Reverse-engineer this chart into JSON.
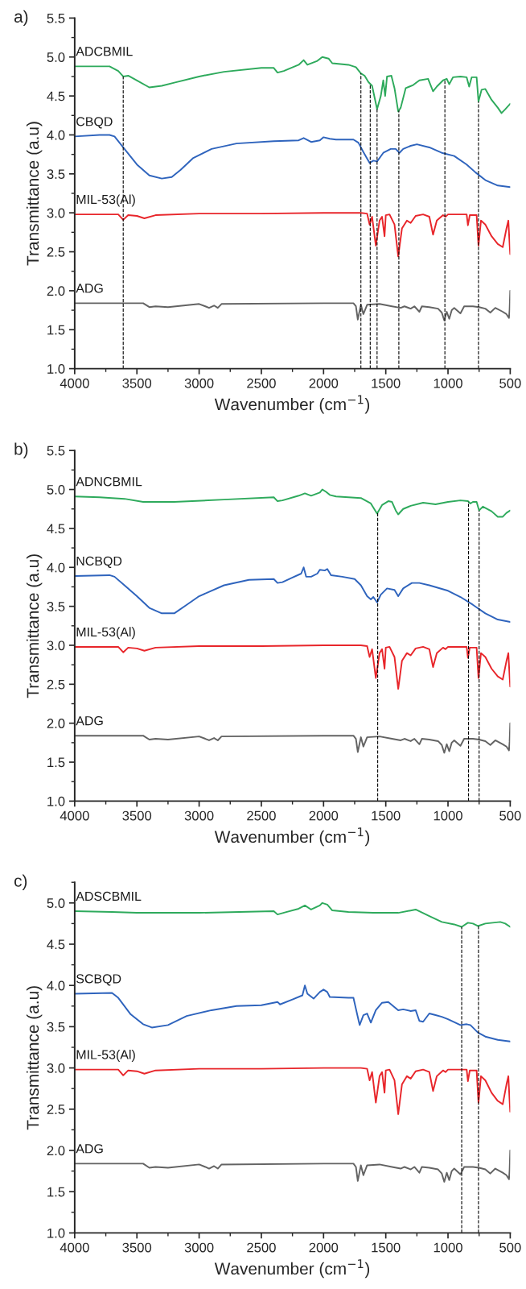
{
  "chart_data": [
    {
      "type": "line",
      "xlabel": "Wavenumber (cm$^{−1}$)",
      "ylabel": "Transmittance (a.u)",
      "annotations": [
        "a)"
      ],
      "xlim": [
        4000,
        500
      ],
      "xticks": [
        4000,
        3500,
        3000,
        2500,
        2000,
        1500,
        1000,
        500
      ],
      "ylim": [
        1.0,
        5.5
      ],
      "yticks": [
        {
          "value": 1,
          "label": "1.0"
        },
        1.5,
        {
          "value": 2,
          "label": "2.0"
        },
        2.5,
        {
          "value": 3,
          "label": "3.0"
        },
        3.5,
        {
          "value": 4,
          "label": "4.0"
        },
        4.5,
        {
          "value": 5,
          "label": "5.0"
        },
        5.5
      ],
      "grid": false,
      "legend": false,
      "line_style": "solid",
      "marker": "none",
      "ref_lines": [
        {
          "axis": "x",
          "value": 3610,
          "line_style": "dashed",
          "color": "#000000"
        },
        {
          "axis": "x",
          "value": 1700,
          "line_style": "dashed",
          "color": "#000000"
        },
        {
          "axis": "x",
          "value": 1625,
          "line_style": "dashed",
          "color": "#000000"
        },
        {
          "axis": "x",
          "value": 1570,
          "line_style": "dashed",
          "color": "#000000"
        },
        {
          "axis": "x",
          "value": 1395,
          "line_style": "dashed",
          "color": "#000000"
        },
        {
          "axis": "x",
          "value": 1025,
          "line_style": "dashed",
          "color": "#000000"
        },
        {
          "axis": "x",
          "value": 755,
          "line_style": "dashed",
          "color": "#000000"
        }
      ],
      "series": [
        {
          "name": "ADCBMIL",
          "color": "#2eaa5c",
          "x": [
            4000,
            3850,
            3720,
            3650,
            3610,
            3570,
            3500,
            3400,
            3300,
            3200,
            3000,
            2800,
            2500,
            2400,
            2370,
            2320,
            2200,
            2160,
            2130,
            2050,
            2010,
            1960,
            1930,
            1800,
            1740,
            1700,
            1670,
            1640,
            1610,
            1570,
            1540,
            1520,
            1505,
            1490,
            1455,
            1430,
            1400,
            1380,
            1340,
            1310,
            1280,
            1230,
            1160,
            1120,
            1090,
            1040,
            1010,
            990,
            960,
            900,
            850,
            830,
            810,
            770,
            755,
            730,
            700,
            650,
            600,
            570,
            540,
            500
          ],
          "values": [
            4.88,
            4.88,
            4.88,
            4.82,
            4.75,
            4.76,
            4.7,
            4.61,
            4.63,
            4.67,
            4.75,
            4.81,
            4.86,
            4.86,
            4.8,
            4.82,
            4.9,
            4.96,
            4.9,
            4.95,
            5.0,
            4.98,
            4.92,
            4.9,
            4.87,
            4.79,
            4.76,
            4.68,
            4.63,
            4.33,
            4.5,
            4.7,
            4.5,
            4.75,
            4.76,
            4.6,
            4.3,
            4.35,
            4.6,
            4.62,
            4.64,
            4.7,
            4.72,
            4.56,
            4.62,
            4.7,
            4.72,
            4.65,
            4.74,
            4.75,
            4.74,
            4.62,
            4.74,
            4.74,
            4.43,
            4.58,
            4.59,
            4.45,
            4.35,
            4.28,
            4.33,
            4.4
          ]
        },
        {
          "name": "CBQD",
          "color": "#2f64bd",
          "x": [
            4000,
            3800,
            3720,
            3680,
            3600,
            3500,
            3400,
            3300,
            3220,
            3150,
            3050,
            2900,
            2700,
            2400,
            2200,
            2160,
            2100,
            2030,
            2000,
            1950,
            1900,
            1760,
            1720,
            1680,
            1630,
            1600,
            1570,
            1520,
            1460,
            1420,
            1390,
            1360,
            1300,
            1250,
            1150,
            1050,
            950,
            850,
            780,
            700,
            600,
            500
          ],
          "values": [
            3.98,
            4.0,
            4.0,
            3.98,
            3.82,
            3.62,
            3.48,
            3.44,
            3.46,
            3.55,
            3.7,
            3.82,
            3.89,
            3.92,
            3.93,
            3.96,
            3.91,
            3.93,
            3.97,
            3.95,
            3.94,
            3.94,
            3.9,
            3.78,
            3.64,
            3.67,
            3.66,
            3.77,
            3.82,
            3.82,
            3.77,
            3.82,
            3.86,
            3.88,
            3.84,
            3.77,
            3.73,
            3.62,
            3.52,
            3.42,
            3.35,
            3.33
          ]
        },
        {
          "name": "MIL-53(Al)",
          "color": "#e8262b",
          "x": [
            4000,
            3650,
            3610,
            3570,
            3500,
            3440,
            3350,
            3000,
            2500,
            2000,
            1700,
            1650,
            1630,
            1610,
            1580,
            1550,
            1530,
            1510,
            1500,
            1470,
            1430,
            1400,
            1370,
            1330,
            1300,
            1260,
            1200,
            1150,
            1120,
            1090,
            1040,
            1020,
            1000,
            850,
            840,
            825,
            770,
            755,
            735,
            700,
            650,
            600,
            560,
            530,
            515,
            505,
            500
          ],
          "values": [
            2.98,
            2.98,
            2.91,
            2.97,
            2.96,
            2.93,
            2.97,
            2.99,
            2.99,
            3.0,
            3.0,
            2.99,
            2.85,
            2.95,
            2.58,
            2.9,
            2.95,
            2.7,
            2.97,
            2.98,
            2.85,
            2.44,
            2.8,
            2.9,
            2.87,
            2.96,
            2.98,
            2.95,
            2.72,
            2.9,
            2.97,
            2.95,
            2.98,
            2.98,
            2.84,
            2.97,
            2.97,
            2.58,
            2.9,
            2.85,
            2.7,
            2.6,
            2.56,
            2.8,
            2.9,
            2.6,
            2.47
          ]
        },
        {
          "name": "ADG",
          "color": "#636363",
          "x": [
            4000,
            3450,
            3400,
            3350,
            3250,
            3000,
            2950,
            2920,
            2880,
            2850,
            2820,
            2000,
            1760,
            1740,
            1725,
            1700,
            1680,
            1650,
            1550,
            1450,
            1380,
            1350,
            1300,
            1270,
            1230,
            1210,
            1150,
            1080,
            1050,
            1030,
            1010,
            990,
            970,
            950,
            900,
            870,
            800,
            750,
            700,
            660,
            620,
            560,
            530,
            510,
            505,
            500
          ],
          "values": [
            1.84,
            1.84,
            1.79,
            1.8,
            1.79,
            1.83,
            1.8,
            1.78,
            1.81,
            1.78,
            1.83,
            1.84,
            1.84,
            1.8,
            1.63,
            1.82,
            1.7,
            1.82,
            1.83,
            1.8,
            1.78,
            1.8,
            1.77,
            1.8,
            1.73,
            1.8,
            1.79,
            1.77,
            1.72,
            1.62,
            1.73,
            1.64,
            1.75,
            1.78,
            1.71,
            1.8,
            1.8,
            1.79,
            1.77,
            1.72,
            1.78,
            1.73,
            1.7,
            1.65,
            1.76,
            2.0
          ]
        }
      ]
    },
    {
      "type": "line",
      "xlabel": "Wavenumber (cm$^{−1}$)",
      "ylabel": "Transmittance (a.u)",
      "annotations": [
        "b)"
      ],
      "xlim": [
        4000,
        500
      ],
      "xticks": [
        4000,
        3500,
        3000,
        2500,
        2000,
        1500,
        1000,
        500
      ],
      "ylim": [
        1.0,
        5.5
      ],
      "yticks": [
        {
          "value": 1,
          "label": "1.0"
        },
        1.5,
        {
          "value": 2,
          "label": "2.0"
        },
        2.5,
        {
          "value": 3,
          "label": "3.0"
        },
        3.5,
        {
          "value": 4,
          "label": "4.0"
        },
        4.5,
        {
          "value": 5,
          "label": "5.0"
        },
        5.5
      ],
      "grid": false,
      "legend": false,
      "line_style": "solid",
      "marker": "none",
      "ref_lines": [
        {
          "axis": "x",
          "value": 1565,
          "line_style": "dashed",
          "color": "#000000"
        },
        {
          "axis": "x",
          "value": 835,
          "line_style": "dashed",
          "color": "#000000"
        },
        {
          "axis": "x",
          "value": 750,
          "line_style": "dashed",
          "color": "#000000"
        }
      ],
      "series": [
        {
          "name": "ADNCBMIL",
          "color": "#2eaa5c",
          "x": [
            4000,
            3800,
            3600,
            3450,
            3200,
            2800,
            2400,
            2370,
            2330,
            2200,
            2150,
            2100,
            2030,
            2010,
            1980,
            1950,
            1900,
            1700,
            1620,
            1570,
            1530,
            1480,
            1450,
            1420,
            1400,
            1360,
            1300,
            1200,
            1100,
            1000,
            900,
            840,
            820,
            800,
            770,
            750,
            720,
            650,
            600,
            560,
            530,
            500
          ],
          "values": [
            4.91,
            4.9,
            4.88,
            4.84,
            4.84,
            4.87,
            4.9,
            4.85,
            4.86,
            4.92,
            4.95,
            4.92,
            4.96,
            5.0,
            4.97,
            4.93,
            4.91,
            4.89,
            4.82,
            4.69,
            4.8,
            4.85,
            4.84,
            4.73,
            4.68,
            4.75,
            4.79,
            4.83,
            4.81,
            4.84,
            4.86,
            4.85,
            4.82,
            4.84,
            4.84,
            4.73,
            4.78,
            4.72,
            4.65,
            4.65,
            4.7,
            4.73
          ]
        },
        {
          "name": "NCBQD",
          "color": "#2f64bd",
          "x": [
            4000,
            3720,
            3680,
            3600,
            3500,
            3400,
            3300,
            3200,
            3100,
            3000,
            2800,
            2600,
            2400,
            2370,
            2330,
            2250,
            2180,
            2160,
            2140,
            2100,
            2050,
            2030,
            1990,
            1970,
            1940,
            1850,
            1750,
            1700,
            1650,
            1620,
            1600,
            1570,
            1540,
            1490,
            1430,
            1400,
            1360,
            1290,
            1230,
            1150,
            1000,
            900,
            800,
            700,
            600,
            500
          ],
          "values": [
            3.89,
            3.9,
            3.88,
            3.77,
            3.63,
            3.48,
            3.41,
            3.41,
            3.52,
            3.63,
            3.77,
            3.84,
            3.85,
            3.8,
            3.81,
            3.87,
            3.92,
            4.0,
            3.88,
            3.88,
            3.92,
            3.97,
            3.96,
            3.98,
            3.9,
            3.88,
            3.85,
            3.77,
            3.63,
            3.59,
            3.62,
            3.55,
            3.65,
            3.73,
            3.71,
            3.63,
            3.73,
            3.8,
            3.8,
            3.77,
            3.7,
            3.62,
            3.52,
            3.41,
            3.33,
            3.3
          ]
        },
        {
          "name": "MIL-53(Al)",
          "color": "#e8262b",
          "x": [
            4000,
            3650,
            3610,
            3570,
            3500,
            3440,
            3350,
            3000,
            2500,
            2000,
            1700,
            1650,
            1630,
            1610,
            1580,
            1550,
            1530,
            1510,
            1500,
            1470,
            1430,
            1400,
            1370,
            1330,
            1300,
            1260,
            1200,
            1150,
            1120,
            1090,
            1040,
            1020,
            1000,
            850,
            840,
            825,
            770,
            755,
            735,
            700,
            650,
            600,
            560,
            530,
            515,
            505,
            500
          ],
          "values": [
            2.98,
            2.98,
            2.91,
            2.97,
            2.96,
            2.93,
            2.97,
            2.99,
            2.99,
            3.0,
            3.0,
            2.99,
            2.85,
            2.95,
            2.58,
            2.9,
            2.95,
            2.7,
            2.97,
            2.98,
            2.85,
            2.44,
            2.8,
            2.9,
            2.87,
            2.96,
            2.98,
            2.95,
            2.72,
            2.9,
            2.97,
            2.95,
            2.98,
            2.98,
            2.84,
            2.97,
            2.97,
            2.58,
            2.9,
            2.85,
            2.7,
            2.6,
            2.56,
            2.8,
            2.9,
            2.6,
            2.47
          ]
        },
        {
          "name": "ADG",
          "color": "#636363",
          "x": [
            4000,
            3450,
            3400,
            3350,
            3250,
            3000,
            2950,
            2920,
            2880,
            2850,
            2820,
            2000,
            1760,
            1740,
            1725,
            1700,
            1680,
            1650,
            1550,
            1450,
            1380,
            1350,
            1300,
            1270,
            1230,
            1210,
            1150,
            1080,
            1050,
            1030,
            1010,
            990,
            970,
            950,
            900,
            870,
            800,
            750,
            700,
            660,
            620,
            560,
            530,
            510,
            505,
            500
          ],
          "values": [
            1.84,
            1.84,
            1.79,
            1.8,
            1.79,
            1.83,
            1.8,
            1.78,
            1.81,
            1.78,
            1.83,
            1.84,
            1.84,
            1.8,
            1.63,
            1.82,
            1.7,
            1.82,
            1.83,
            1.8,
            1.78,
            1.8,
            1.77,
            1.8,
            1.73,
            1.8,
            1.79,
            1.77,
            1.72,
            1.62,
            1.73,
            1.64,
            1.75,
            1.78,
            1.71,
            1.8,
            1.8,
            1.79,
            1.77,
            1.72,
            1.78,
            1.73,
            1.7,
            1.65,
            1.76,
            2.0
          ]
        }
      ]
    },
    {
      "type": "line",
      "xlabel": "Wavenumber (cm$^{−1}$)",
      "ylabel": "Transmittance (a.u)",
      "annotations": [
        "c)"
      ],
      "xlim": [
        4000,
        500
      ],
      "xticks": [
        4000,
        3500,
        3000,
        2500,
        2000,
        1500,
        1000,
        500
      ],
      "ylim": [
        1.0,
        5.25
      ],
      "yticks": [
        {
          "value": 1,
          "label": "1.0"
        },
        1.5,
        {
          "value": 2,
          "label": "2.0"
        },
        2.5,
        {
          "value": 3,
          "label": "3.0"
        },
        3.5,
        {
          "value": 4,
          "label": "4.0"
        },
        4.5,
        {
          "value": 5,
          "label": "5.0"
        }
      ],
      "grid": false,
      "legend": false,
      "line_style": "solid",
      "marker": "none",
      "ref_lines": [
        {
          "axis": "x",
          "value": 890,
          "line_style": "dashed",
          "color": "#000000"
        },
        {
          "axis": "x",
          "value": 755,
          "line_style": "dashed",
          "color": "#000000"
        }
      ],
      "series": [
        {
          "name": "ADSCBMIL",
          "color": "#2eaa5c",
          "x": [
            4000,
            3700,
            3500,
            3000,
            2400,
            2370,
            2300,
            2200,
            2150,
            2100,
            2030,
            2010,
            1970,
            1930,
            1800,
            1600,
            1400,
            1260,
            1150,
            1050,
            950,
            890,
            840,
            800,
            760,
            700,
            580,
            540,
            500
          ],
          "values": [
            4.9,
            4.89,
            4.88,
            4.88,
            4.9,
            4.86,
            4.89,
            4.93,
            4.97,
            4.92,
            4.97,
            5.0,
            4.98,
            4.91,
            4.89,
            4.88,
            4.88,
            4.92,
            4.84,
            4.77,
            4.74,
            4.71,
            4.76,
            4.75,
            4.72,
            4.75,
            4.77,
            4.75,
            4.71
          ]
        },
        {
          "name": "SCBQD",
          "color": "#2f64bd",
          "x": [
            4000,
            3700,
            3650,
            3550,
            3450,
            3380,
            3250,
            3100,
            2900,
            2700,
            2500,
            2370,
            2350,
            2250,
            2170,
            2150,
            2130,
            2080,
            2030,
            2000,
            1970,
            1950,
            1800,
            1760,
            1730,
            1710,
            1680,
            1650,
            1620,
            1580,
            1530,
            1480,
            1400,
            1360,
            1300,
            1260,
            1230,
            1200,
            1150,
            1100,
            1050,
            1000,
            900,
            850,
            820,
            760,
            700,
            600,
            500
          ],
          "values": [
            3.9,
            3.91,
            3.85,
            3.65,
            3.53,
            3.49,
            3.52,
            3.63,
            3.7,
            3.75,
            3.76,
            3.8,
            3.77,
            3.83,
            3.88,
            4.0,
            3.9,
            3.84,
            3.92,
            3.95,
            3.92,
            3.86,
            3.85,
            3.85,
            3.65,
            3.52,
            3.64,
            3.66,
            3.55,
            3.7,
            3.79,
            3.8,
            3.7,
            3.71,
            3.69,
            3.7,
            3.57,
            3.56,
            3.66,
            3.64,
            3.62,
            3.59,
            3.52,
            3.53,
            3.52,
            3.43,
            3.38,
            3.34,
            3.32
          ]
        },
        {
          "name": "MIL-53(Al)",
          "color": "#e8262b",
          "x": [
            4000,
            3650,
            3610,
            3570,
            3500,
            3440,
            3350,
            3000,
            2500,
            2000,
            1700,
            1650,
            1630,
            1610,
            1580,
            1550,
            1530,
            1510,
            1500,
            1470,
            1430,
            1400,
            1370,
            1330,
            1300,
            1260,
            1200,
            1150,
            1120,
            1090,
            1040,
            1020,
            1000,
            850,
            840,
            825,
            770,
            755,
            735,
            700,
            650,
            600,
            560,
            530,
            515,
            505,
            500
          ],
          "values": [
            2.98,
            2.98,
            2.91,
            2.97,
            2.96,
            2.93,
            2.97,
            2.99,
            2.99,
            3.0,
            3.0,
            2.99,
            2.85,
            2.95,
            2.58,
            2.9,
            2.95,
            2.7,
            2.97,
            2.98,
            2.85,
            2.44,
            2.8,
            2.9,
            2.87,
            2.96,
            2.98,
            2.95,
            2.72,
            2.9,
            2.97,
            2.95,
            2.98,
            2.98,
            2.84,
            2.97,
            2.97,
            2.58,
            2.9,
            2.85,
            2.7,
            2.6,
            2.56,
            2.8,
            2.9,
            2.6,
            2.47
          ]
        },
        {
          "name": "ADG",
          "color": "#636363",
          "x": [
            4000,
            3450,
            3400,
            3350,
            3250,
            3000,
            2950,
            2920,
            2880,
            2850,
            2820,
            2000,
            1760,
            1740,
            1725,
            1700,
            1680,
            1650,
            1550,
            1450,
            1380,
            1350,
            1300,
            1270,
            1230,
            1210,
            1150,
            1080,
            1050,
            1030,
            1010,
            990,
            970,
            950,
            900,
            870,
            800,
            750,
            700,
            660,
            620,
            560,
            530,
            510,
            505,
            500
          ],
          "values": [
            1.84,
            1.84,
            1.79,
            1.8,
            1.79,
            1.83,
            1.8,
            1.78,
            1.81,
            1.78,
            1.83,
            1.84,
            1.84,
            1.8,
            1.63,
            1.82,
            1.7,
            1.82,
            1.83,
            1.8,
            1.78,
            1.8,
            1.77,
            1.8,
            1.73,
            1.8,
            1.79,
            1.77,
            1.72,
            1.62,
            1.73,
            1.64,
            1.75,
            1.78,
            1.71,
            1.8,
            1.8,
            1.79,
            1.77,
            1.72,
            1.78,
            1.73,
            1.7,
            1.65,
            1.76,
            2.0
          ]
        }
      ]
    }
  ]
}
